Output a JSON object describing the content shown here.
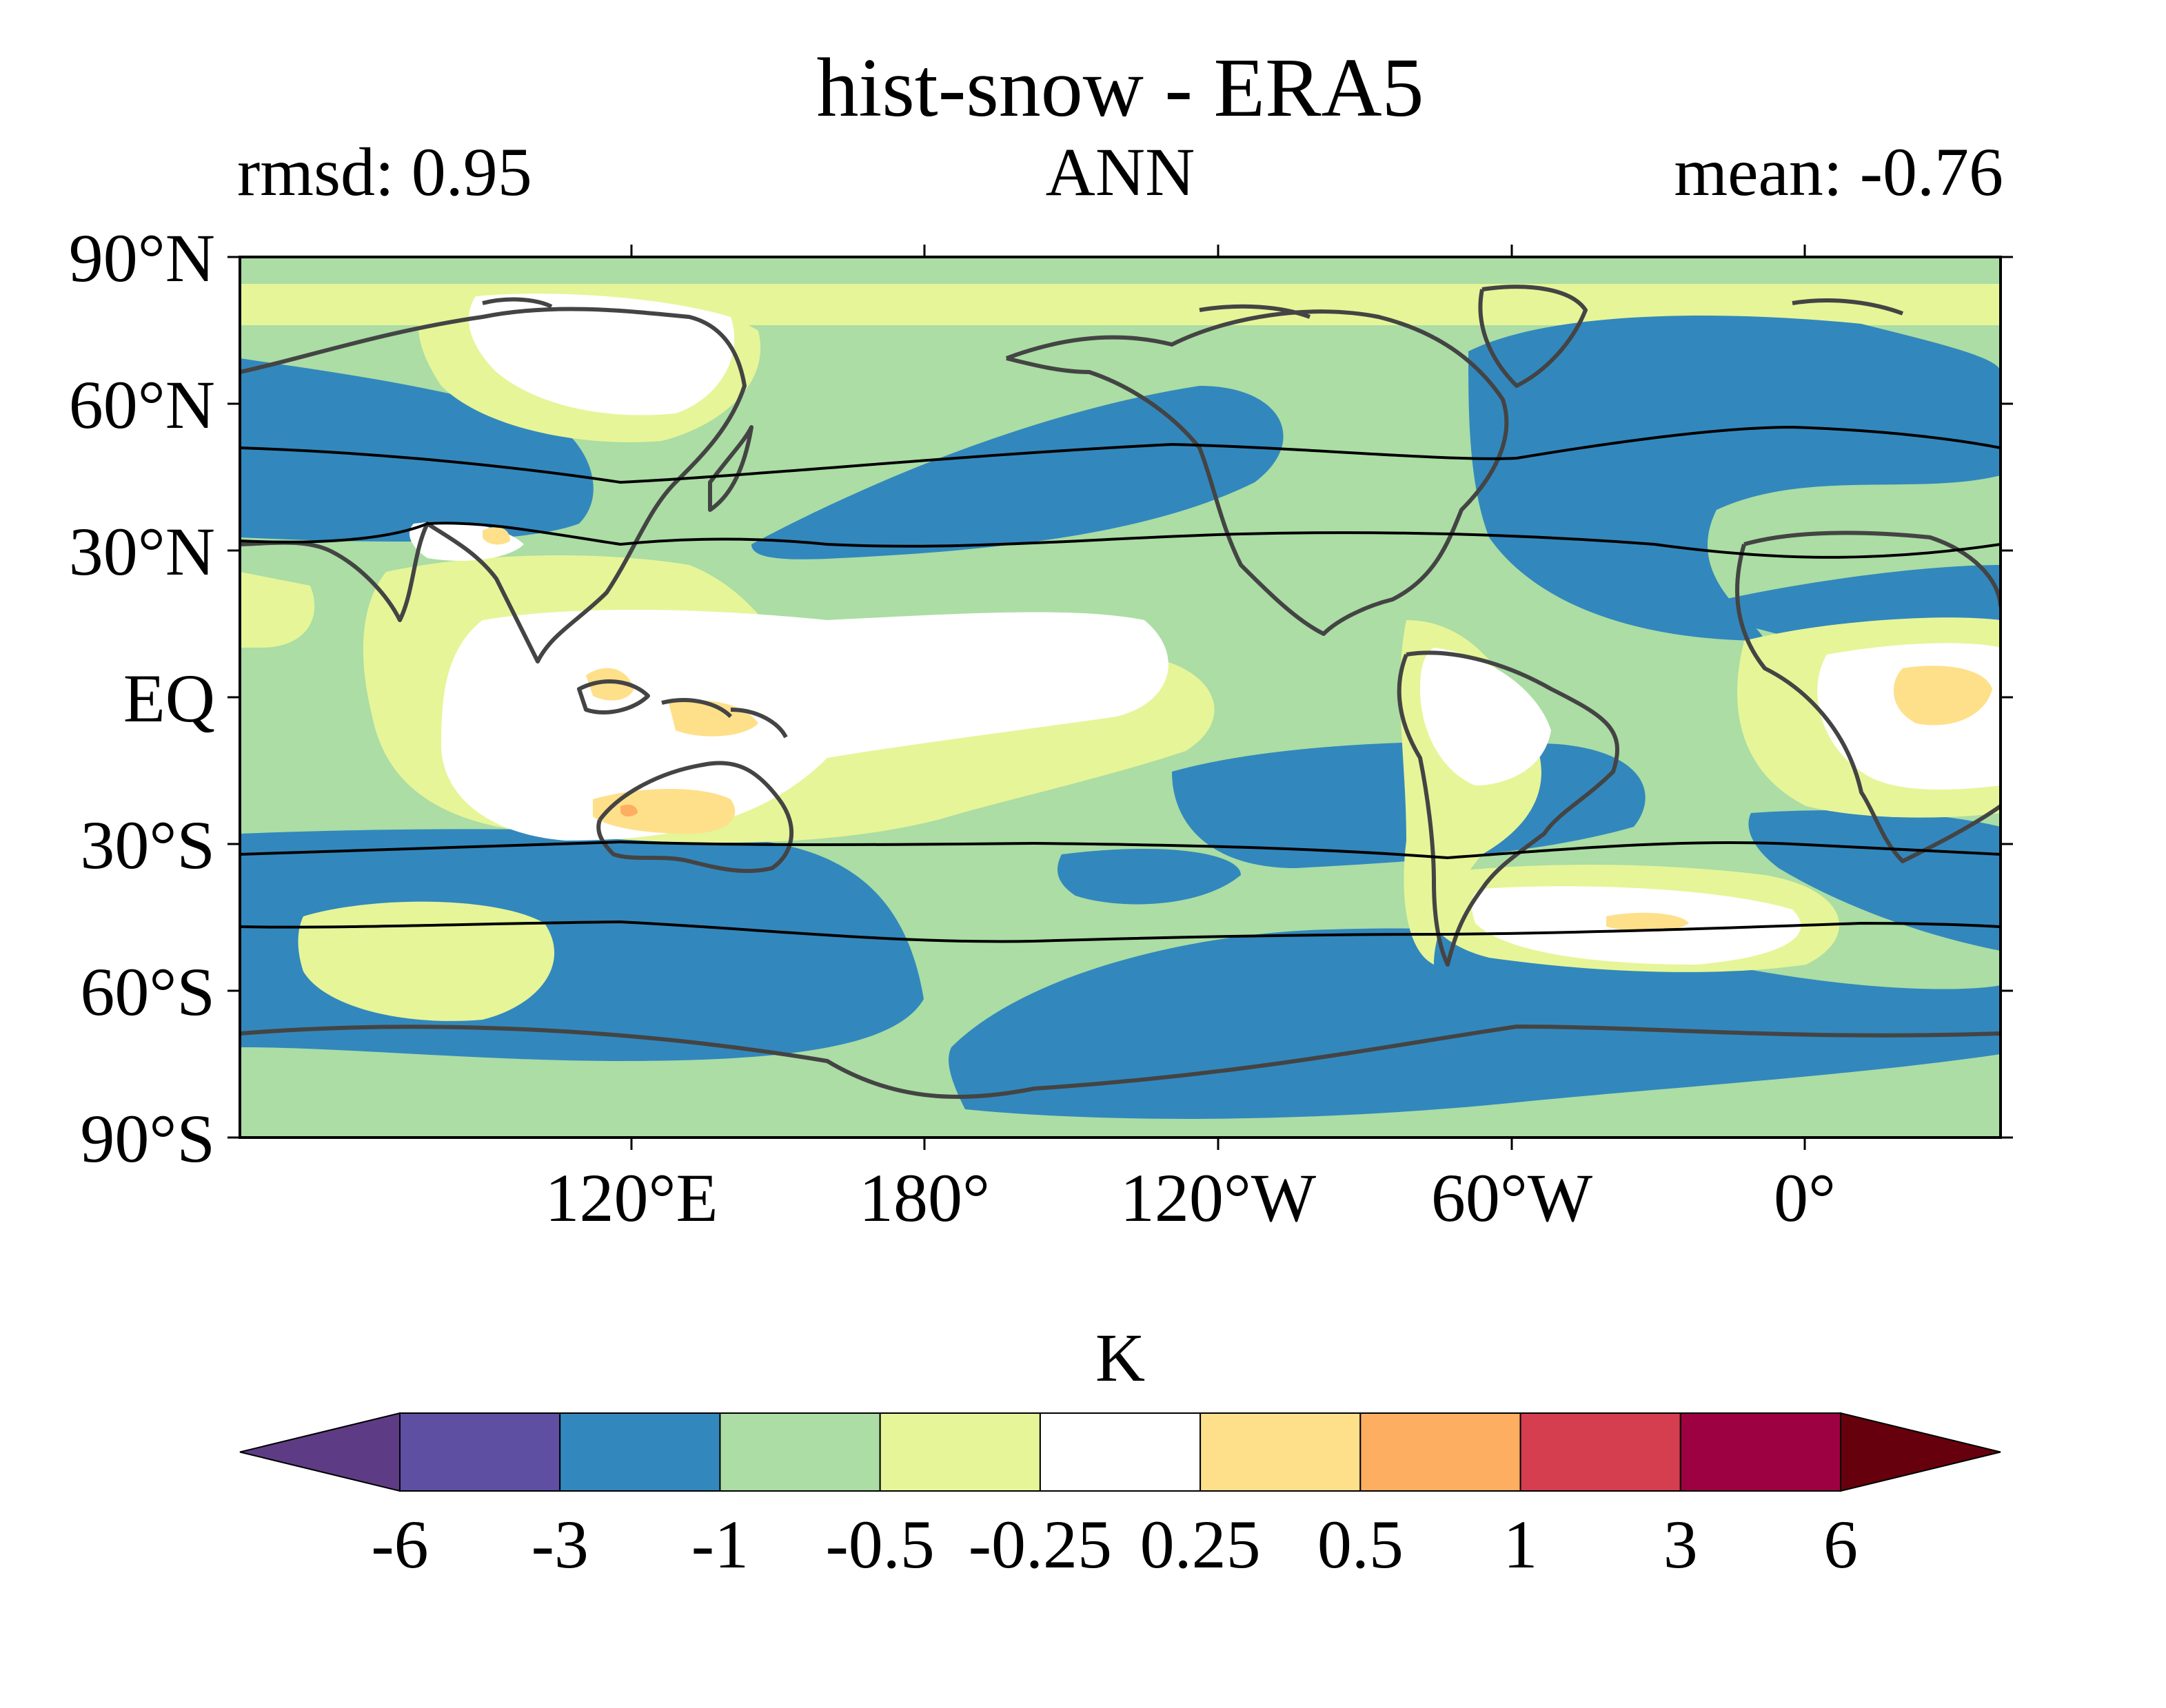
{
  "title": "hist-snow - ERA5",
  "subtitle": {
    "left": "rmsd: 0.95",
    "center": "ANN",
    "right": "mean: -0.76"
  },
  "map": {
    "projection": "equirectangular, central longitude 150°E",
    "lat_ticks": [
      "90°N",
      "60°N",
      "30°N",
      "EQ",
      "30°S",
      "60°S",
      "90°S"
    ],
    "lon_ticks": [
      "120°E",
      "180°",
      "120°W",
      "60°W",
      "0°"
    ],
    "overlay_lines": "black contour lines near 30°N, ~50°N, 30°S and ~47°S"
  },
  "colorbar": {
    "label": "K",
    "extend": "both",
    "bounds": [
      "-6",
      "-3",
      "-1",
      "-0.5",
      "-0.25",
      "0.25",
      "0.5",
      "1",
      "3",
      "6"
    ],
    "colors": {
      "under": "#5e3c85",
      "levels": [
        "#5e4fa2",
        "#3288bd",
        "#abdda4",
        "#e6f598",
        "#ffffff",
        "#fee08b",
        "#fdae61",
        "#d53e4f",
        "#9e0142"
      ],
      "over": "#67000d"
    }
  },
  "colors": {
    "coastline": "#444444",
    "contour_line": "#000000",
    "text": "#000000"
  }
}
